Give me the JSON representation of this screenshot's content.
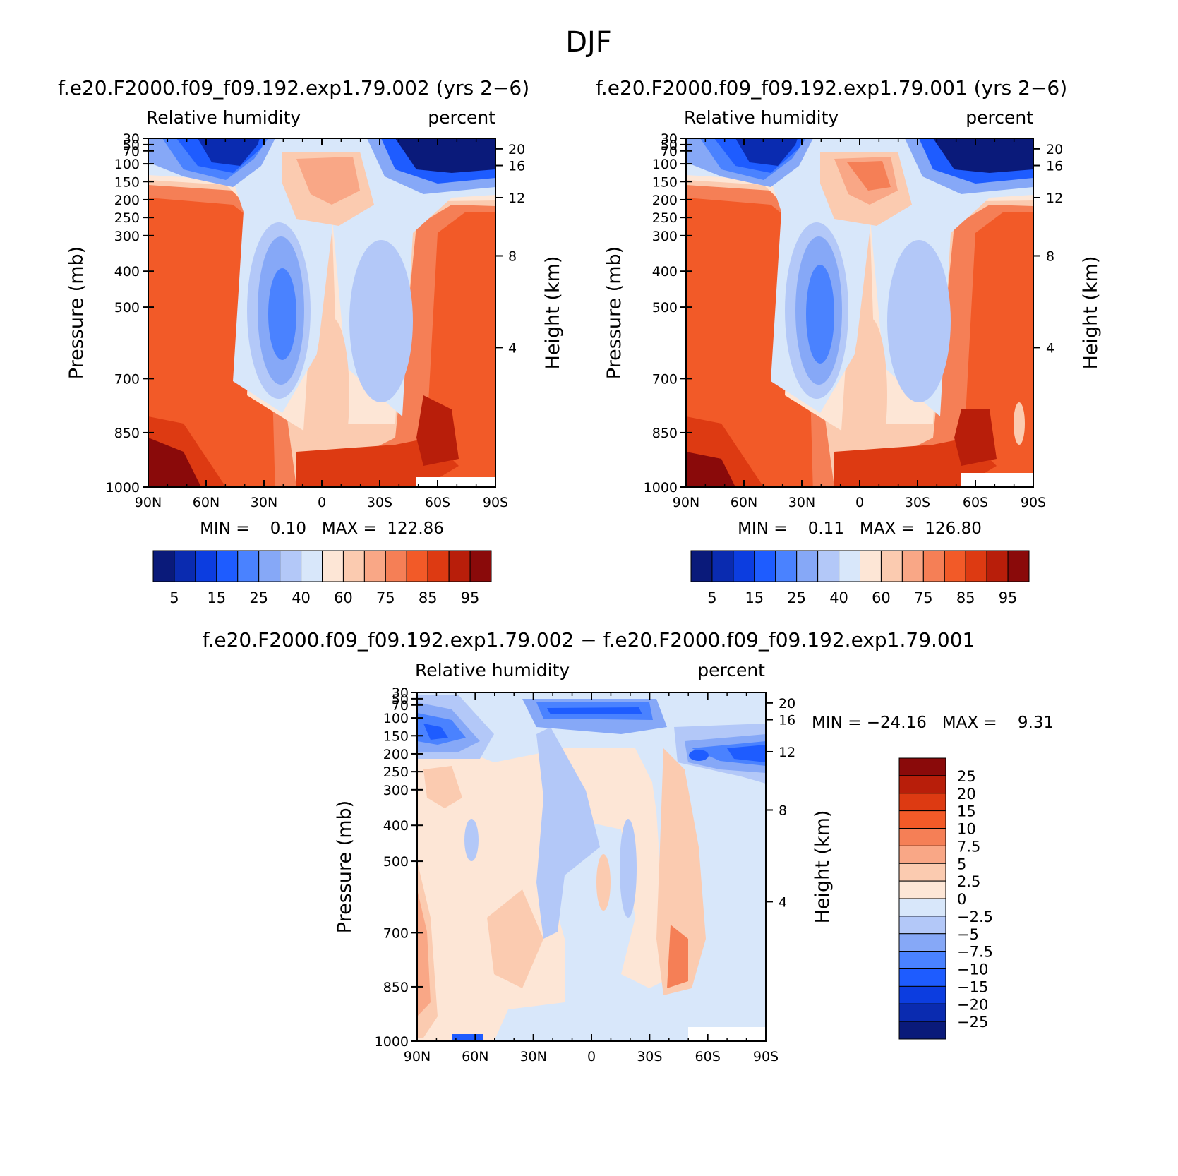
{
  "figure": {
    "title": "DJF"
  },
  "chart_data": [
    {
      "type": "contour",
      "run_title": "f.e20.F2000.f09_f09.192.exp1.79.002 (yrs 2−6)",
      "field_label": "Relative humidity",
      "units_label": "percent",
      "ylabel": "Pressure (mb)",
      "ylabel_right": "Height (km)",
      "x_ticks": [
        "90N",
        "60N",
        "30N",
        "0",
        "30S",
        "60S",
        "90S"
      ],
      "y_ticks": [
        "30",
        "50",
        "70",
        "100",
        "150",
        "200",
        "250",
        "300",
        "400",
        "500",
        "700",
        "850",
        "1000"
      ],
      "y_ticks_right": [
        "20",
        "16",
        "12",
        "8",
        "4"
      ],
      "min_max_text": "MIN =    0.10   MAX =  122.86",
      "min": 0.1,
      "max": 122.86,
      "colorbar": {
        "orientation": "horizontal",
        "labels": [
          "5",
          "15",
          "25",
          "40",
          "60",
          "75",
          "85",
          "95"
        ],
        "colors": [
          "#0a1a7a",
          "#0a2bb0",
          "#0c3de0",
          "#1e5cff",
          "#4a82ff",
          "#86a8f7",
          "#b3c8f8",
          "#d8e7fa",
          "#fde6d6",
          "#fbcbb0",
          "#f9a786",
          "#f57f56",
          "#f25a28",
          "#dd3a12",
          "#b81e0a",
          "#8a0a0a"
        ]
      }
    },
    {
      "type": "contour",
      "run_title": "f.e20.F2000.f09_f09.192.exp1.79.001 (yrs 2−6)",
      "field_label": "Relative humidity",
      "units_label": "percent",
      "ylabel": "Pressure (mb)",
      "ylabel_right": "Height (km)",
      "x_ticks": [
        "90N",
        "60N",
        "30N",
        "0",
        "30S",
        "60S",
        "90S"
      ],
      "y_ticks": [
        "30",
        "50",
        "70",
        "100",
        "150",
        "200",
        "250",
        "300",
        "400",
        "500",
        "700",
        "850",
        "1000"
      ],
      "y_ticks_right": [
        "20",
        "16",
        "12",
        "8",
        "4"
      ],
      "min_max_text": "MIN =    0.11   MAX =  126.80",
      "min": 0.11,
      "max": 126.8,
      "colorbar": {
        "orientation": "horizontal",
        "labels": [
          "5",
          "15",
          "25",
          "40",
          "60",
          "75",
          "85",
          "95"
        ],
        "colors": [
          "#0a1a7a",
          "#0a2bb0",
          "#0c3de0",
          "#1e5cff",
          "#4a82ff",
          "#86a8f7",
          "#b3c8f8",
          "#d8e7fa",
          "#fde6d6",
          "#fbcbb0",
          "#f9a786",
          "#f57f56",
          "#f25a28",
          "#dd3a12",
          "#b81e0a",
          "#8a0a0a"
        ]
      }
    },
    {
      "type": "contour",
      "run_title": "f.e20.F2000.f09_f09.192.exp1.79.002 − f.e20.F2000.f09_f09.192.exp1.79.001",
      "field_label": "Relative humidity",
      "units_label": "percent",
      "ylabel": "Pressure (mb)",
      "ylabel_right": "Height (km)",
      "x_ticks": [
        "90N",
        "60N",
        "30N",
        "0",
        "30S",
        "60S",
        "90S"
      ],
      "y_ticks": [
        "30",
        "50",
        "70",
        "100",
        "150",
        "200",
        "250",
        "300",
        "400",
        "500",
        "700",
        "850",
        "1000"
      ],
      "y_ticks_right": [
        "20",
        "16",
        "12",
        "8",
        "4"
      ],
      "min_max_text": "MIN = −24.16   MAX =    9.31",
      "min": -24.16,
      "max": 9.31,
      "colorbar": {
        "orientation": "vertical",
        "labels": [
          "25",
          "20",
          "15",
          "10",
          "7.5",
          "5",
          "2.5",
          "0",
          "−2.5",
          "−5",
          "−7.5",
          "−10",
          "−15",
          "−20",
          "−25"
        ],
        "colors": [
          "#8a0a0a",
          "#b81e0a",
          "#dd3a12",
          "#f25a28",
          "#f57f56",
          "#f9a786",
          "#fbcbb0",
          "#fde6d6",
          "#d8e7fa",
          "#b3c8f8",
          "#86a8f7",
          "#4a82ff",
          "#1e5cff",
          "#0c3de0",
          "#0a2bb0",
          "#0a1a7a"
        ]
      }
    }
  ]
}
